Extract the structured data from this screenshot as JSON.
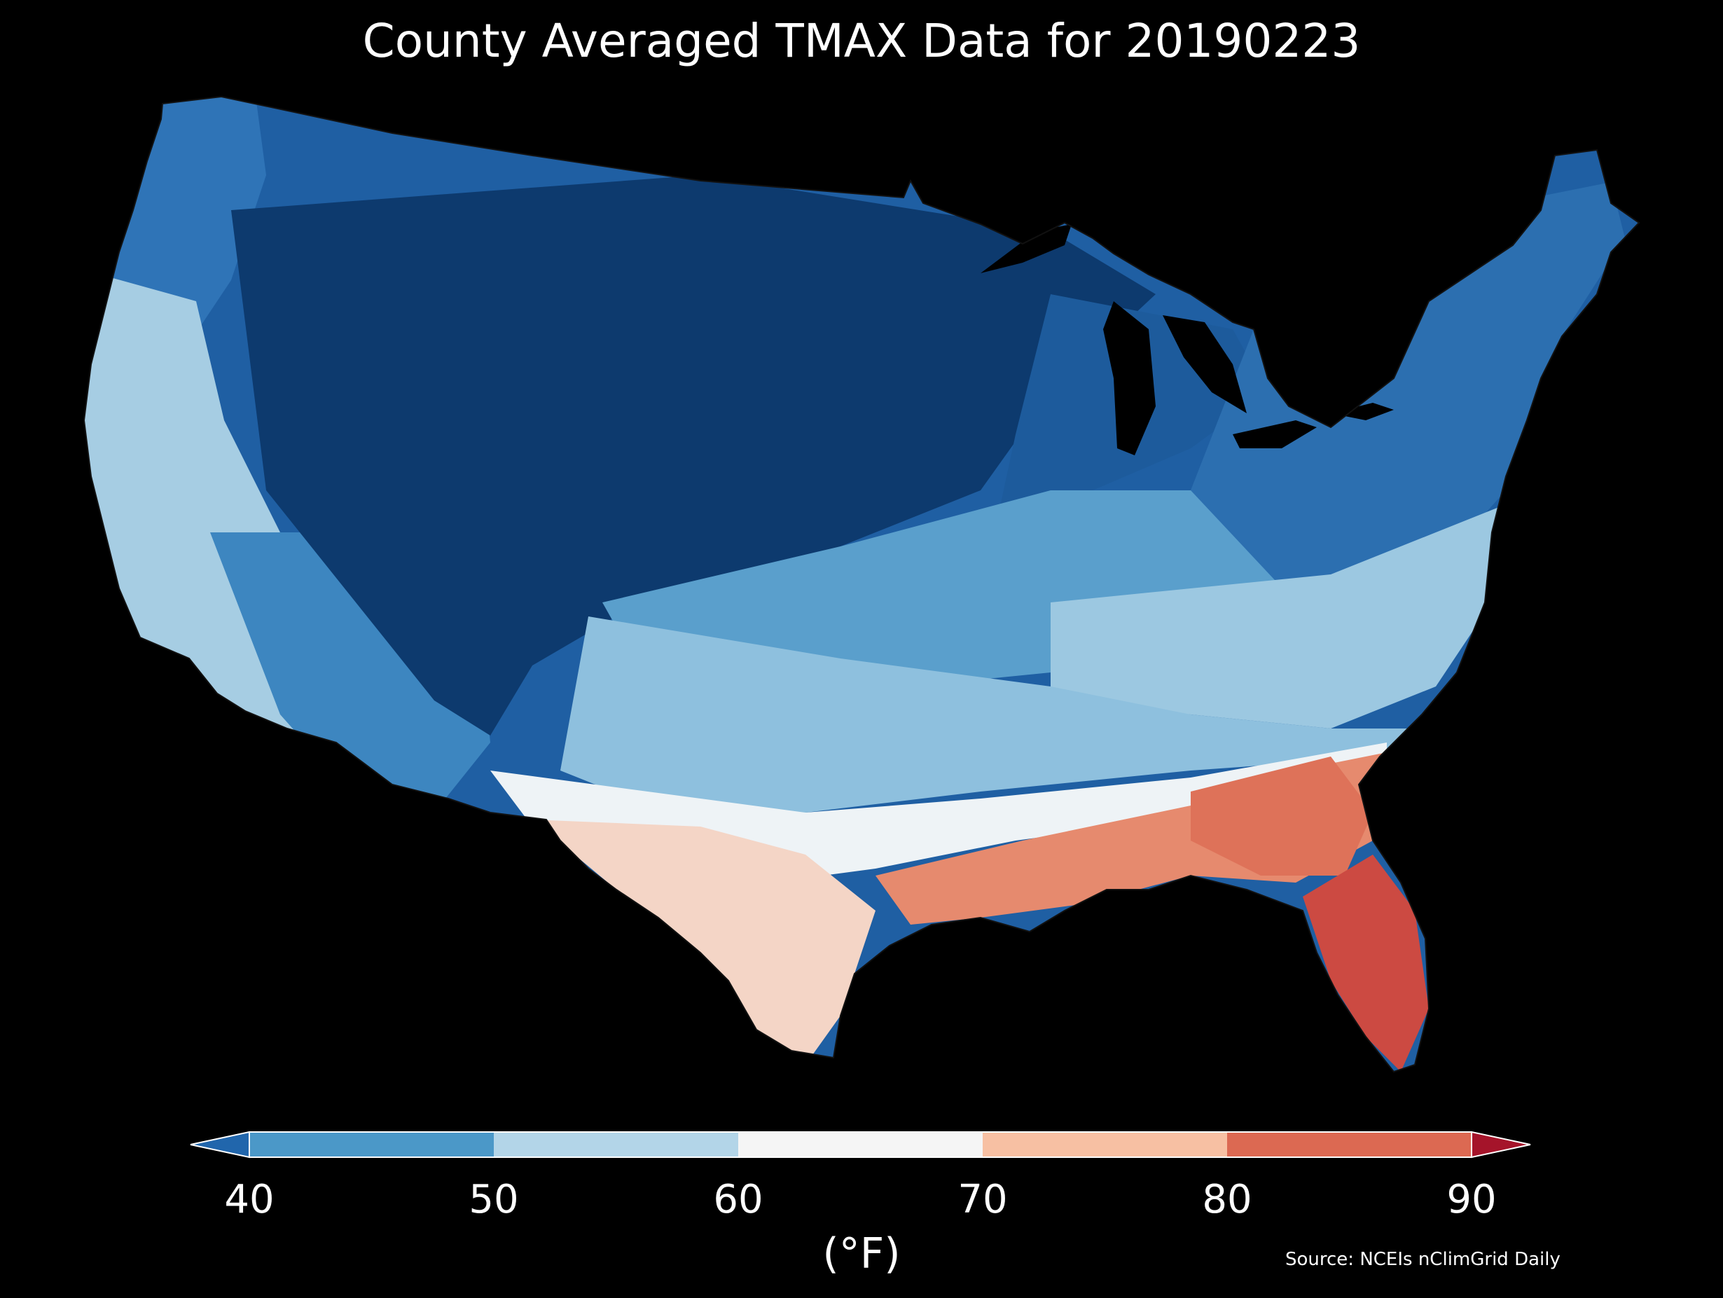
{
  "title": "County Averaged TMAX Data for 20190223",
  "colorbar": {
    "ticks": [
      "40",
      "50",
      "60",
      "70",
      "80",
      "90"
    ],
    "unit": "(°F)",
    "bins": [
      {
        "range": [
          40,
          50
        ],
        "color": "#4b98c8"
      },
      {
        "range": [
          50,
          60
        ],
        "color": "#b3d5e8"
      },
      {
        "range": [
          60,
          70
        ],
        "color": "#f5f5f5"
      },
      {
        "range": [
          70,
          80
        ],
        "color": "#f7c0a3"
      },
      {
        "range": [
          80,
          90
        ],
        "color": "#dc6952"
      }
    ],
    "under_color": "#2166ac",
    "over_color": "#a5142a"
  },
  "source": "Source: NCEIs nClimGrid Daily",
  "regions": [
    {
      "name": "northern-plains-rockies",
      "band": "below-40",
      "color": "#0d3a6e"
    },
    {
      "name": "northeast",
      "band": "40-50",
      "color": "#2c6fb0"
    },
    {
      "name": "west-coast",
      "band": "50-60",
      "color": "#a6cde3"
    },
    {
      "name": "southwest-desert",
      "band": "40-50",
      "color": "#3d86c0"
    },
    {
      "name": "central-plains",
      "band": "50-60",
      "color": "#8ec0de"
    },
    {
      "name": "texas-oklahoma",
      "band": "60-70",
      "color": "#f3dbd0"
    },
    {
      "name": "southeast",
      "band": "70-80",
      "color": "#e68a6e"
    },
    {
      "name": "florida",
      "band": "80-90",
      "color": "#cc4a42"
    }
  ]
}
